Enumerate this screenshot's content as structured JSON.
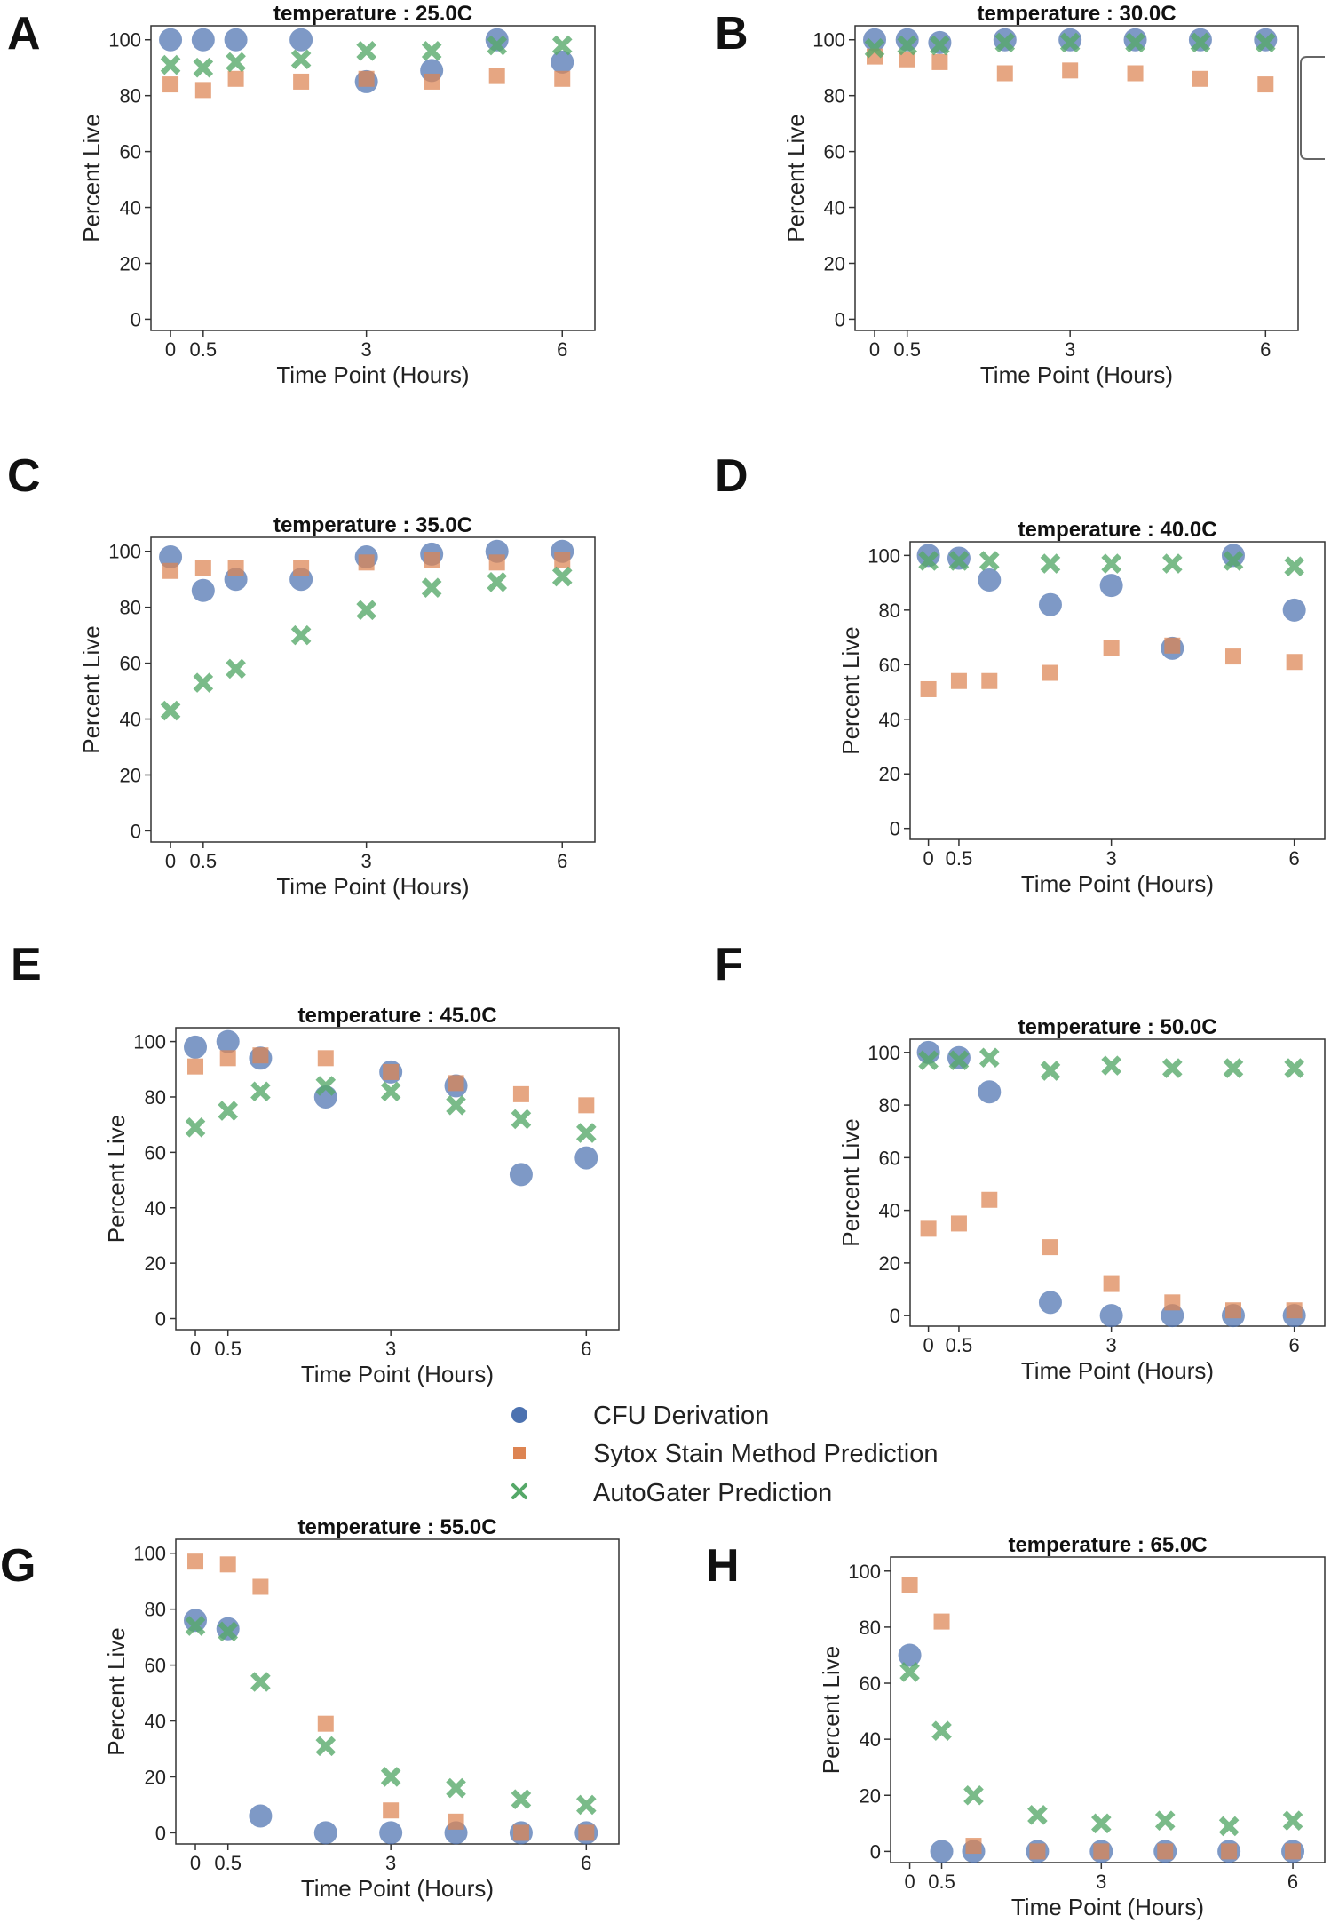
{
  "figure": {
    "legend": {
      "entries": [
        {
          "name": "CFU Derivation",
          "marker": "circle",
          "color": "#4C72B0"
        },
        {
          "name": "Sytox Stain Method Prediction",
          "marker": "square",
          "color": "#DD8452"
        },
        {
          "name": "AutoGater Prediction",
          "marker": "x",
          "color": "#55A868"
        }
      ],
      "placement": "center"
    }
  },
  "chart_data": [
    {
      "panel": "A",
      "type": "scatter",
      "title": "temperature : 25.0C",
      "xlabel": "Time Point (Hours)",
      "ylabel": "Percent Live",
      "xlim": [
        -0.3,
        6.5
      ],
      "ylim": [
        -4,
        105
      ],
      "xticks": [
        0,
        0.5,
        3,
        6
      ],
      "xtick_labels": [
        "0",
        "0.5",
        "3",
        "6"
      ],
      "yticks": [
        0,
        20,
        40,
        60,
        80,
        100
      ],
      "x": [
        0,
        0.5,
        1,
        2,
        3,
        4,
        5,
        6
      ],
      "series": [
        {
          "name": "CFU Derivation",
          "values": [
            100,
            100,
            100,
            100,
            85,
            89,
            100,
            92
          ]
        },
        {
          "name": "Sytox Stain Method Prediction",
          "values": [
            84,
            82,
            86,
            85,
            86,
            85,
            87,
            86
          ]
        },
        {
          "name": "AutoGater Prediction",
          "values": [
            91,
            90,
            92,
            93,
            96,
            96,
            98,
            98
          ]
        }
      ]
    },
    {
      "panel": "B",
      "type": "scatter",
      "title": "temperature : 30.0C",
      "xlabel": "Time Point (Hours)",
      "ylabel": "Percent Live",
      "xlim": [
        -0.3,
        6.5
      ],
      "ylim": [
        -4,
        105
      ],
      "xticks": [
        0,
        0.5,
        3,
        6
      ],
      "xtick_labels": [
        "0",
        "0.5",
        "3",
        "6"
      ],
      "yticks": [
        0,
        20,
        40,
        60,
        80,
        100
      ],
      "x": [
        0,
        0.5,
        1,
        2,
        3,
        4,
        5,
        6
      ],
      "series": [
        {
          "name": "CFU Derivation",
          "values": [
            100,
            100,
            99,
            100,
            100,
            100,
            100,
            100
          ]
        },
        {
          "name": "Sytox Stain Method Prediction",
          "values": [
            94,
            93,
            92,
            88,
            89,
            88,
            86,
            84
          ]
        },
        {
          "name": "AutoGater Prediction",
          "values": [
            97,
            98,
            98,
            99,
            99,
            99,
            99,
            99
          ]
        }
      ]
    },
    {
      "panel": "C",
      "type": "scatter",
      "title": "temperature : 35.0C",
      "xlabel": "Time Point (Hours)",
      "ylabel": "Percent Live",
      "xlim": [
        -0.3,
        6.5
      ],
      "ylim": [
        -4,
        105
      ],
      "xticks": [
        0,
        0.5,
        3,
        6
      ],
      "xtick_labels": [
        "0",
        "0.5",
        "3",
        "6"
      ],
      "yticks": [
        0,
        20,
        40,
        60,
        80,
        100
      ],
      "x": [
        0,
        0.5,
        1,
        2,
        3,
        4,
        5,
        6
      ],
      "series": [
        {
          "name": "CFU Derivation",
          "values": [
            98,
            86,
            90,
            90,
            98,
            99,
            100,
            100
          ]
        },
        {
          "name": "Sytox Stain Method Prediction",
          "values": [
            93,
            94,
            94,
            94,
            96,
            97,
            96,
            97
          ]
        },
        {
          "name": "AutoGater Prediction",
          "values": [
            43,
            53,
            58,
            70,
            79,
            87,
            89,
            91
          ]
        }
      ]
    },
    {
      "panel": "D",
      "type": "scatter",
      "title": "temperature : 40.0C",
      "xlabel": "Time Point (Hours)",
      "ylabel": "Percent Live",
      "xlim": [
        -0.3,
        6.5
      ],
      "ylim": [
        -4,
        105
      ],
      "xticks": [
        0,
        0.5,
        3,
        6
      ],
      "xtick_labels": [
        "0",
        "0.5",
        "3",
        "6"
      ],
      "yticks": [
        0,
        20,
        40,
        60,
        80,
        100
      ],
      "x": [
        0,
        0.5,
        1,
        2,
        3,
        4,
        5,
        6
      ],
      "series": [
        {
          "name": "CFU Derivation",
          "values": [
            100,
            99,
            91,
            82,
            89,
            66,
            100,
            80
          ]
        },
        {
          "name": "Sytox Stain Method Prediction",
          "values": [
            51,
            54,
            54,
            57,
            66,
            67,
            63,
            61
          ]
        },
        {
          "name": "AutoGater Prediction",
          "values": [
            98,
            98,
            98,
            97,
            97,
            97,
            98,
            96
          ]
        }
      ]
    },
    {
      "panel": "E",
      "type": "scatter",
      "title": "temperature : 45.0C",
      "xlabel": "Time Point (Hours)",
      "ylabel": "Percent Live",
      "xlim": [
        -0.3,
        6.5
      ],
      "ylim": [
        -4,
        105
      ],
      "xticks": [
        0,
        0.5,
        3,
        6
      ],
      "xtick_labels": [
        "0",
        "0.5",
        "3",
        "6"
      ],
      "yticks": [
        0,
        20,
        40,
        60,
        80,
        100
      ],
      "x": [
        0,
        0.5,
        1,
        2,
        3,
        4,
        5,
        6
      ],
      "series": [
        {
          "name": "CFU Derivation",
          "values": [
            98,
            100,
            94,
            80,
            89,
            84,
            52,
            58
          ]
        },
        {
          "name": "Sytox Stain Method Prediction",
          "values": [
            91,
            94,
            95,
            94,
            89,
            85,
            81,
            77
          ]
        },
        {
          "name": "AutoGater Prediction",
          "values": [
            69,
            75,
            82,
            84,
            82,
            77,
            72,
            67
          ]
        }
      ]
    },
    {
      "panel": "F",
      "type": "scatter",
      "title": "temperature : 50.0C",
      "xlabel": "Time Point (Hours)",
      "ylabel": "Percent Live",
      "xlim": [
        -0.3,
        6.5
      ],
      "ylim": [
        -4,
        105
      ],
      "xticks": [
        0,
        0.5,
        3,
        6
      ],
      "xtick_labels": [
        "0",
        "0.5",
        "3",
        "6"
      ],
      "yticks": [
        0,
        20,
        40,
        60,
        80,
        100
      ],
      "x": [
        0,
        0.5,
        1,
        2,
        3,
        4,
        5,
        6
      ],
      "series": [
        {
          "name": "CFU Derivation",
          "values": [
            100,
            98,
            85,
            5,
            0,
            0,
            0,
            0
          ]
        },
        {
          "name": "Sytox Stain Method Prediction",
          "values": [
            33,
            35,
            44,
            26,
            12,
            5,
            2,
            2
          ]
        },
        {
          "name": "AutoGater Prediction",
          "values": [
            97,
            97,
            98,
            93,
            95,
            94,
            94,
            94
          ]
        }
      ]
    },
    {
      "panel": "G",
      "type": "scatter",
      "title": "temperature : 55.0C",
      "xlabel": "Time Point (Hours)",
      "ylabel": "Percent Live",
      "xlim": [
        -0.3,
        6.5
      ],
      "ylim": [
        -4,
        105
      ],
      "xticks": [
        0,
        0.5,
        3,
        6
      ],
      "xtick_labels": [
        "0",
        "0.5",
        "3",
        "6"
      ],
      "yticks": [
        0,
        20,
        40,
        60,
        80,
        100
      ],
      "x": [
        0,
        0.5,
        1,
        2,
        3,
        4,
        5,
        6
      ],
      "series": [
        {
          "name": "CFU Derivation",
          "values": [
            76,
            73,
            6,
            0,
            0,
            0,
            0,
            0
          ]
        },
        {
          "name": "Sytox Stain Method Prediction",
          "values": [
            97,
            96,
            88,
            39,
            8,
            4,
            0,
            0
          ]
        },
        {
          "name": "AutoGater Prediction",
          "values": [
            74,
            72,
            54,
            31,
            20,
            16,
            12,
            10
          ]
        }
      ]
    },
    {
      "panel": "H",
      "type": "scatter",
      "title": "temperature : 65.0C",
      "xlabel": "Time Point (Hours)",
      "ylabel": "Percent Live",
      "xlim": [
        -0.3,
        6.5
      ],
      "ylim": [
        -4,
        105
      ],
      "xticks": [
        0,
        0.5,
        3,
        6
      ],
      "xtick_labels": [
        "0",
        "0.5",
        "3",
        "6"
      ],
      "yticks": [
        0,
        20,
        40,
        60,
        80,
        100
      ],
      "x": [
        0,
        0.5,
        1,
        2,
        3,
        4,
        5,
        6
      ],
      "series": [
        {
          "name": "CFU Derivation",
          "values": [
            70,
            0,
            0,
            0,
            0,
            0,
            0,
            0
          ]
        },
        {
          "name": "Sytox Stain Method Prediction",
          "values": [
            95,
            82,
            2,
            0,
            0,
            0,
            0,
            0
          ]
        },
        {
          "name": "AutoGater Prediction",
          "values": [
            64,
            43,
            20,
            13,
            10,
            11,
            9,
            11
          ]
        }
      ]
    }
  ]
}
